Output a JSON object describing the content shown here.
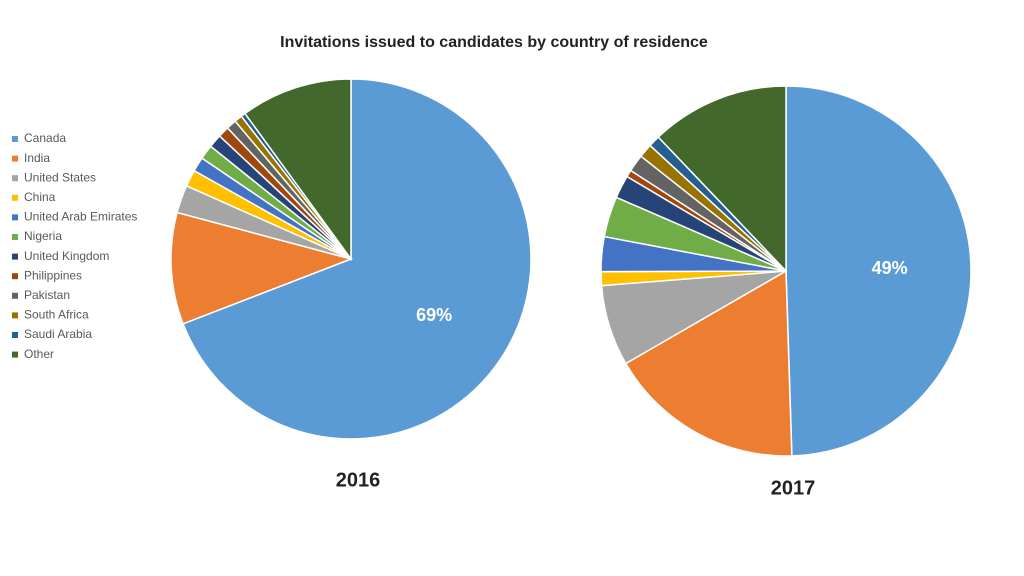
{
  "chart_data": {
    "type": "pie",
    "title": "Invitations issued to candidates by country of residence",
    "categories": [
      "Canada",
      "India",
      "United States",
      "China",
      "United Arab Emirates",
      "Nigeria",
      "United Kingdom",
      "Philippines",
      "Pakistan",
      "South Africa",
      "Saudi Arabia",
      "Other"
    ],
    "colors": [
      "#5b9bd5",
      "#ed7d31",
      "#a5a5a5",
      "#ffc000",
      "#4472c4",
      "#70ad47",
      "#264478",
      "#9e480e",
      "#636363",
      "#997300",
      "#255e91",
      "#43682b"
    ],
    "series": [
      {
        "name": "2016",
        "values": [
          69,
          10,
          2.5,
          1.5,
          1.3,
          1.3,
          1.2,
          1,
          0.9,
          0.7,
          0.4,
          10
        ],
        "value_labels": [
          "69%",
          null,
          null,
          null,
          null,
          null,
          null,
          null,
          null,
          null,
          null,
          null
        ]
      },
      {
        "name": "2017",
        "values": [
          49,
          17,
          7,
          1.2,
          3,
          3.5,
          2,
          0.6,
          1.5,
          1.2,
          1,
          12
        ],
        "value_labels": [
          "49%",
          null,
          null,
          null,
          null,
          null,
          null,
          null,
          null,
          null,
          null,
          null
        ]
      }
    ]
  }
}
